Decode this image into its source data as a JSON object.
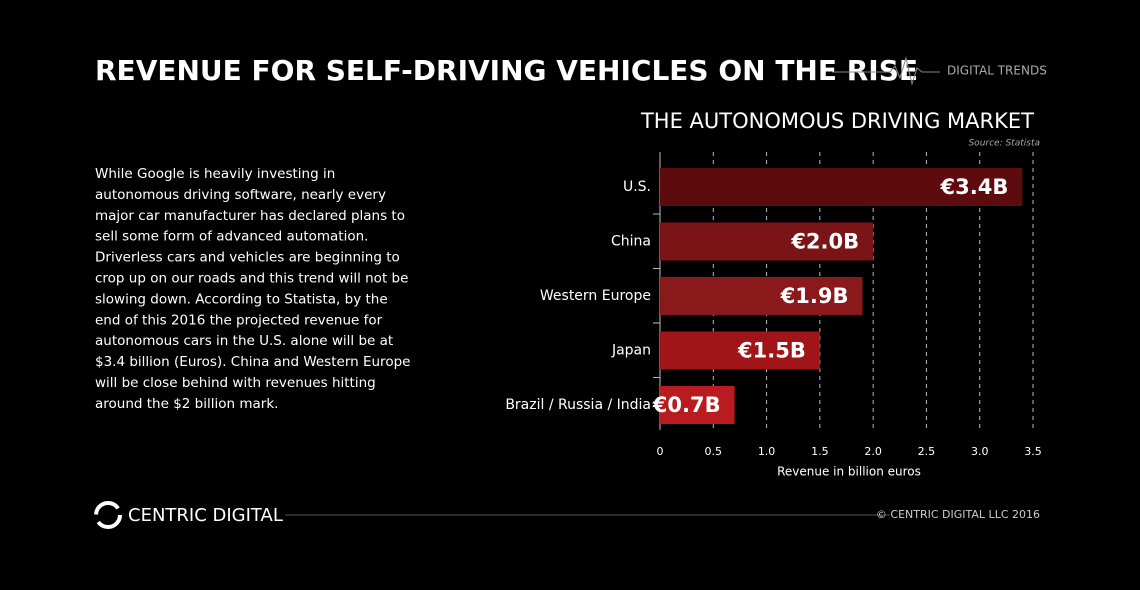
{
  "header": {
    "title": "REVENUE FOR SELF-DRIVING VEHICLES ON THE RISE",
    "brand": "DIGITAL TRENDS"
  },
  "body": {
    "lines": [
      "While Google is heavily investing in",
      "autonomous driving software, nearly every",
      "major car manufacturer has declared plans to",
      "sell some form of advanced automation.",
      "Driverless cars and vehicles are beginning to",
      "crop up on our roads and this trend will not be",
      "slowing down. According to Statista, by the",
      "end of this 2016 the projected revenue for",
      "autonomous cars in the U.S. alone will be at",
      "$3.4 billion (Euros). China and Western Europe",
      "will be close behind with revenues hitting",
      "around the $2 billion mark."
    ]
  },
  "chart_data": {
    "type": "bar",
    "orientation": "horizontal",
    "title": "THE AUTONOMOUS DRIVING MARKET",
    "source": "Source: Statista",
    "categories": [
      "U.S.",
      "China",
      "Western Europe",
      "Japan",
      "Brazil / Russia / India"
    ],
    "values": [
      3.4,
      2.0,
      1.9,
      1.5,
      0.7
    ],
    "value_labels": [
      "€3.4B",
      "€2.0B",
      "€1.9B",
      "€1.5B",
      "€0.7B"
    ],
    "colors": [
      "#5e0b0e",
      "#7a1417",
      "#8a191b",
      "#a11518",
      "#b91c20"
    ],
    "xlabel": "Revenue in billion euros",
    "xlim": [
      0,
      3.5
    ],
    "xticks": [
      0,
      0.5,
      {
        "value": 1,
        "label": "1.0"
      },
      1.5,
      {
        "value": 2,
        "label": "2.0"
      },
      2.5,
      {
        "value": 3,
        "label": "3.0"
      },
      3.5
    ],
    "grid": true
  },
  "footer": {
    "logo": "CENTRIC DIGITAL",
    "copyright": "© CENTRIC DIGITAL LLC 2016"
  }
}
